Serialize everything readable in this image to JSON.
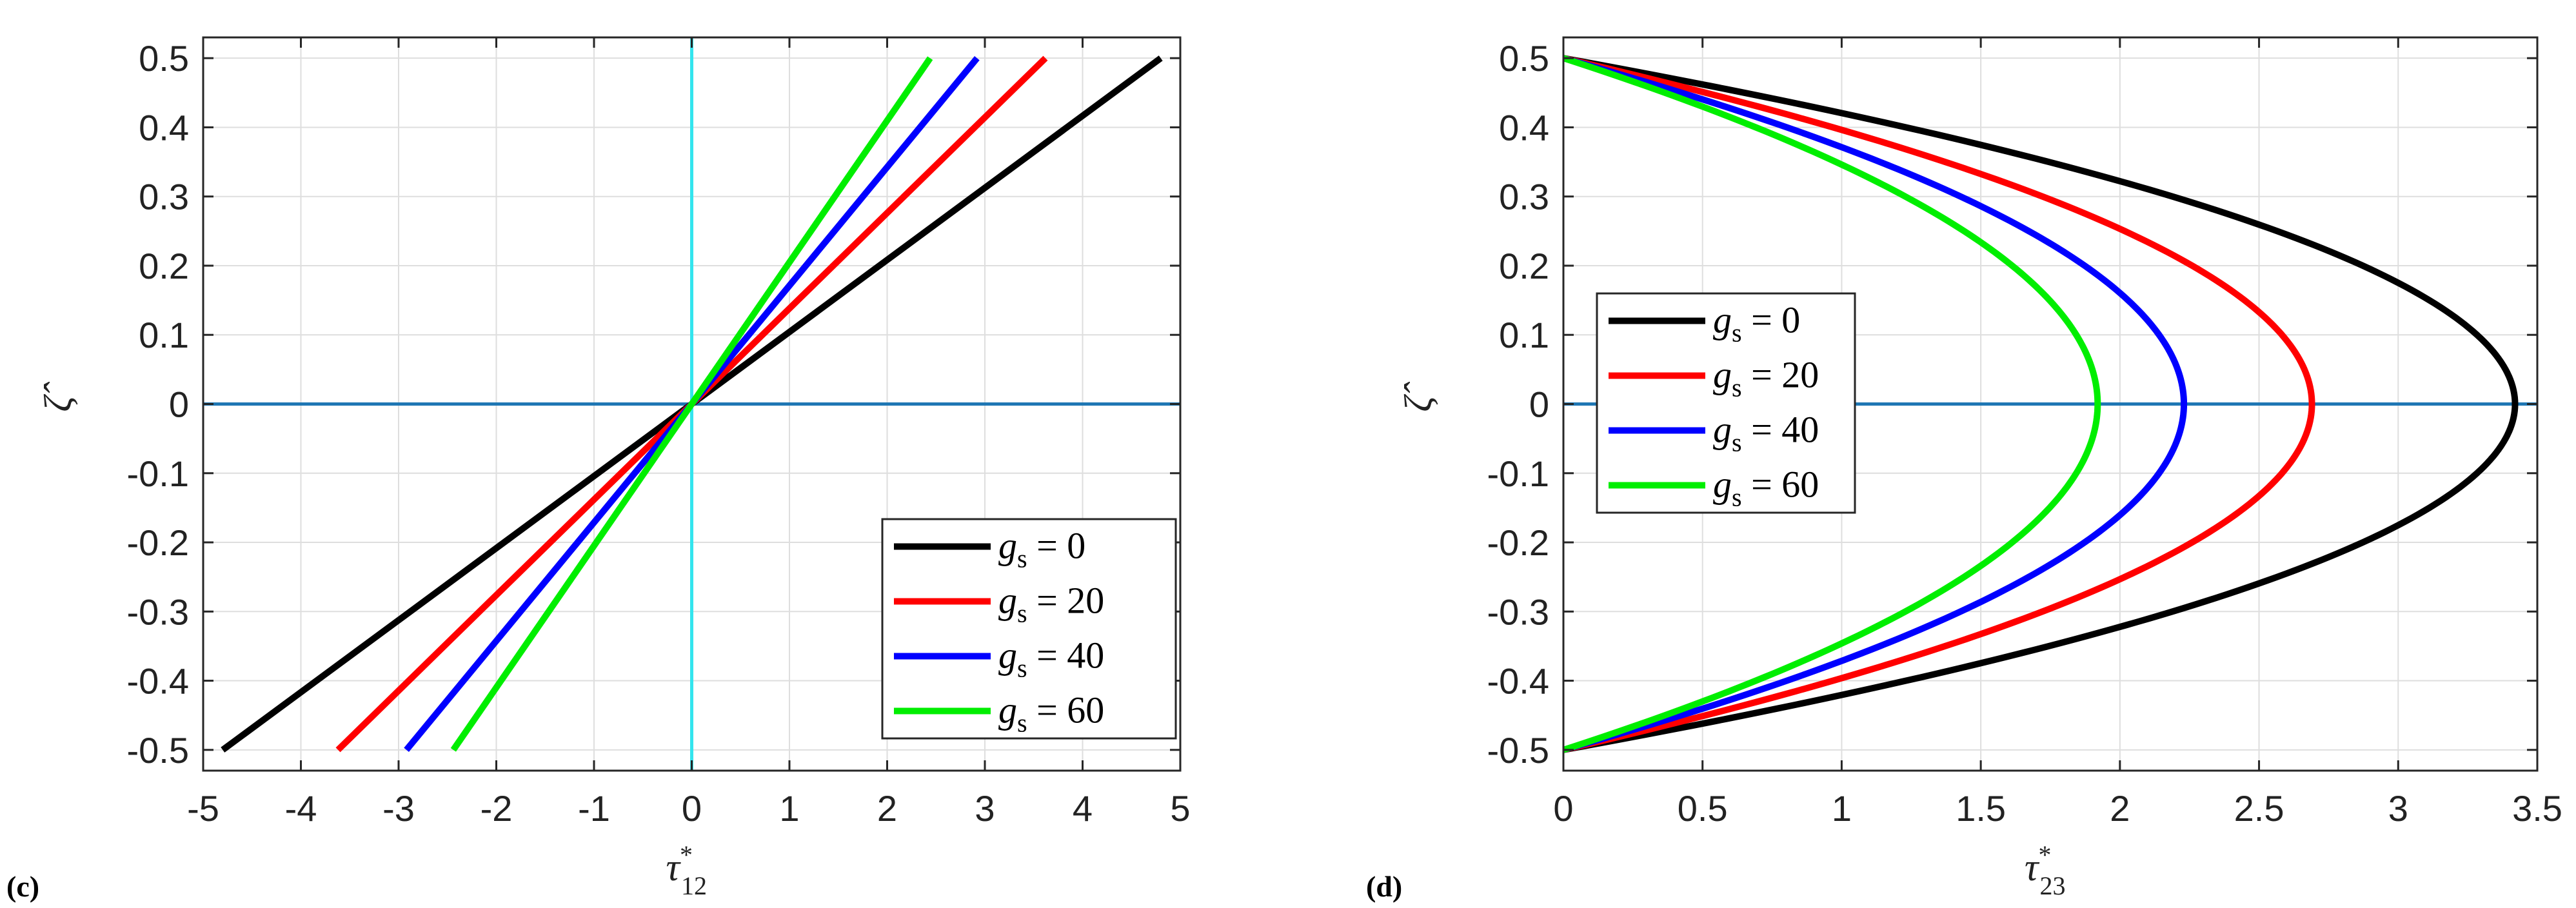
{
  "chart_data": [
    {
      "panel": "c",
      "panel_label": "(c)",
      "type": "line",
      "xlabel": "τ*12",
      "xlabel_main": "τ",
      "xlabel_sup": "*",
      "xlabel_sub": "12",
      "ylabel": "ζ̂",
      "xlim": [
        -5,
        5
      ],
      "ylim": [
        -0.53,
        0.53
      ],
      "xticks": [
        -5,
        -4,
        -3,
        -2,
        -1,
        0,
        1,
        2,
        3,
        4,
        5
      ],
      "xtick_labels": [
        "-5",
        "-4",
        "-3",
        "-2",
        "-1",
        "0",
        "1",
        "2",
        "3",
        "4",
        "5"
      ],
      "yticks": [
        0.5,
        0.4,
        0.3,
        0.2,
        0.1,
        0,
        -0.1,
        -0.2,
        -0.3,
        -0.4,
        -0.5
      ],
      "ytick_labels": [
        "0.5",
        "0.4",
        "0.3",
        "0.2",
        "0.1",
        "0",
        "-0.1",
        "-0.2",
        "-0.3",
        "-0.4",
        "-0.5"
      ],
      "grid": true,
      "legend_position": "bottom-right",
      "reference_lines": [
        {
          "orientation": "horizontal",
          "value": 0,
          "color": "#1f77b4"
        },
        {
          "orientation": "vertical",
          "value": 0,
          "color": "#33e5ee"
        }
      ],
      "series": [
        {
          "name": "g_s = 0",
          "label_main": "g",
          "label_sub": "s",
          "label_rest": " = 0",
          "color": "#000000",
          "x": [
            -4.8,
            4.8
          ],
          "y": [
            -0.5,
            0.5
          ]
        },
        {
          "name": "g_s = 20",
          "label_main": "g",
          "label_sub": "s",
          "label_rest": " = 20",
          "color": "#ff0000",
          "x": [
            -3.62,
            3.62
          ],
          "y": [
            -0.5,
            0.5
          ]
        },
        {
          "name": "g_s = 40",
          "label_main": "g",
          "label_sub": "s",
          "label_rest": " = 40",
          "color": "#0000ff",
          "x": [
            -2.92,
            2.92
          ],
          "y": [
            -0.5,
            0.5
          ]
        },
        {
          "name": "g_s = 60",
          "label_main": "g",
          "label_sub": "s",
          "label_rest": " = 60",
          "color": "#00ee00",
          "x": [
            -2.44,
            2.44
          ],
          "y": [
            -0.5,
            0.5
          ]
        }
      ]
    },
    {
      "panel": "d",
      "panel_label": "(d)",
      "type": "line",
      "xlabel": "τ*23",
      "xlabel_main": "τ",
      "xlabel_sup": "*",
      "xlabel_sub": "23",
      "ylabel": "ζ̂",
      "xlim": [
        0,
        3.5
      ],
      "ylim": [
        -0.53,
        0.53
      ],
      "xticks": [
        0,
        0.5,
        1,
        1.5,
        2,
        2.5,
        3,
        3.5
      ],
      "xtick_labels": [
        "0",
        "0.5",
        "1",
        "1.5",
        "2",
        "2.5",
        "3",
        "3.5"
      ],
      "yticks": [
        0.5,
        0.4,
        0.3,
        0.2,
        0.1,
        0,
        -0.1,
        -0.2,
        -0.3,
        -0.4,
        -0.5
      ],
      "ytick_labels": [
        "0.5",
        "0.4",
        "0.3",
        "0.2",
        "0.1",
        "0",
        "-0.1",
        "-0.2",
        "-0.3",
        "-0.4",
        "-0.5"
      ],
      "grid": true,
      "legend_position": "middle-left",
      "reference_lines": [
        {
          "orientation": "horizontal",
          "value": 0,
          "color": "#1f77b4"
        }
      ],
      "curve_shape": "parabolic: x = peak * (1 - 4*y^2), y from -0.5 to 0.5",
      "series": [
        {
          "name": "g_s = 0",
          "label_main": "g",
          "label_sub": "s",
          "label_rest": " = 0",
          "color": "#000000",
          "peak_x": 3.42
        },
        {
          "name": "g_s = 20",
          "label_main": "g",
          "label_sub": "s",
          "label_rest": " = 20",
          "color": "#ff0000",
          "peak_x": 2.69
        },
        {
          "name": "g_s = 40",
          "label_main": "g",
          "label_sub": "s",
          "label_rest": " = 40",
          "color": "#0000ff",
          "peak_x": 2.23
        },
        {
          "name": "g_s = 60",
          "label_main": "g",
          "label_sub": "s",
          "label_rest": " = 60",
          "color": "#00ee00",
          "peak_x": 1.92
        }
      ]
    }
  ]
}
